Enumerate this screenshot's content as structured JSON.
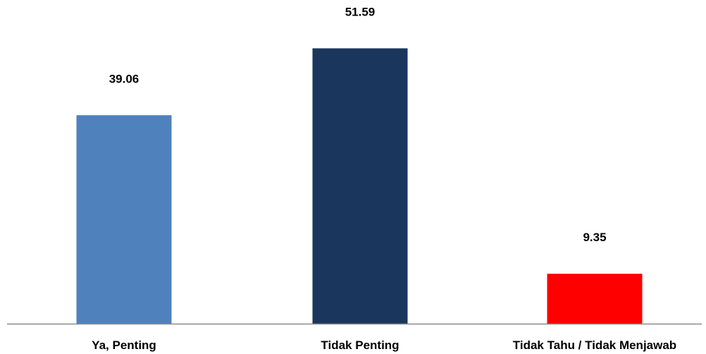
{
  "chart_data": {
    "type": "bar",
    "title": "",
    "xlabel": "",
    "ylabel": "",
    "categories": [
      "Ya, Penting",
      "Tidak Penting",
      "Tidak Tahu / Tidak Menjawab"
    ],
    "values": [
      39.06,
      51.59,
      9.35
    ],
    "value_labels": [
      "39.06",
      "51.59",
      "9.35"
    ],
    "colors": [
      "#4f81bd",
      "#1b365d",
      "#ff0000"
    ],
    "axis_color": "#8c8c8c",
    "ylim": [
      0,
      58
    ],
    "grid": false,
    "legend": "none"
  }
}
